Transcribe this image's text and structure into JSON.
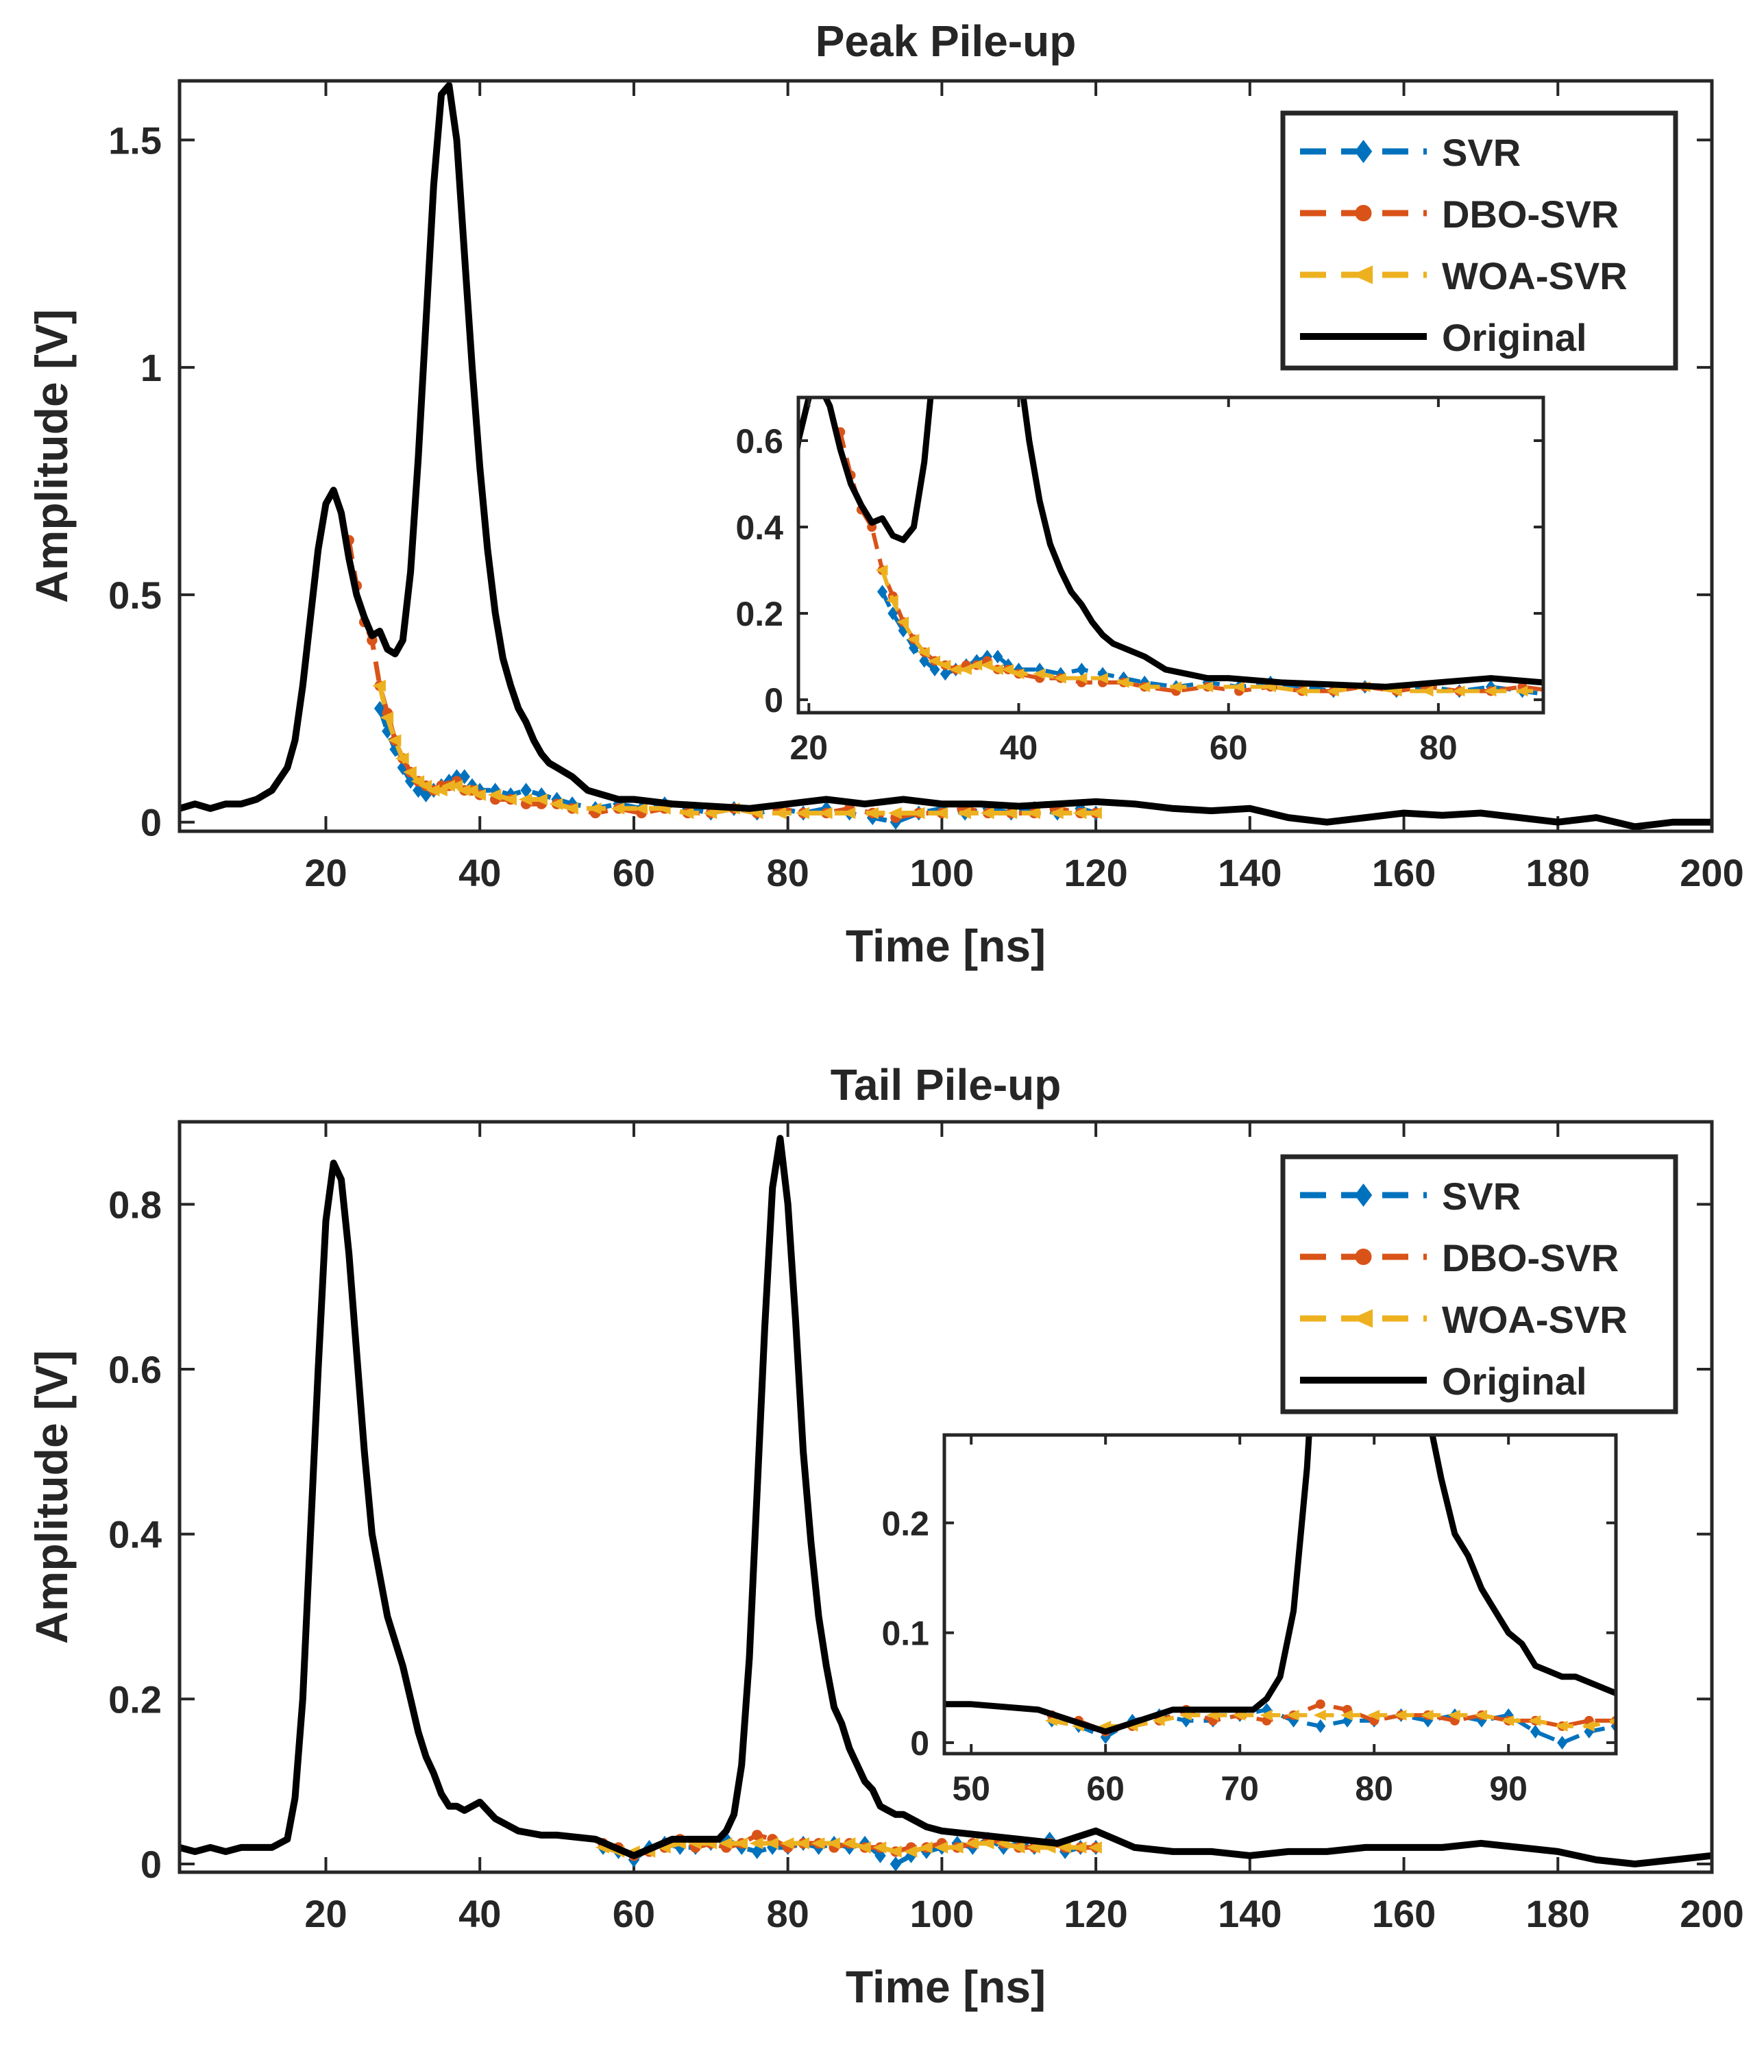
{
  "chart_data": [
    {
      "type": "line",
      "title": "Peak Pile-up",
      "xlabel": "Time [ns]",
      "ylabel": "Amplitude [V]",
      "xlim": [
        1,
        200
      ],
      "ylim": [
        -0.02,
        1.63
      ],
      "xticks": [
        20,
        40,
        60,
        80,
        100,
        120,
        140,
        160,
        180,
        200
      ],
      "xtick_labels": [
        "20",
        "40",
        "60",
        "80",
        "100",
        "120",
        "140",
        "160",
        "180",
        "200"
      ],
      "yticks": [
        0,
        0.5,
        1,
        1.5
      ],
      "ytick_labels": [
        "0",
        "0.5",
        "1",
        "1.5"
      ],
      "legend_position": "top-right",
      "series": [
        {
          "name": "SVR",
          "color": "#0072BD",
          "marker": "diamond",
          "x": [
            27,
            28,
            29,
            30,
            31,
            32,
            33,
            34,
            35,
            36,
            37,
            38,
            39,
            40,
            42,
            44,
            46,
            48,
            50,
            52,
            55,
            58,
            61,
            64,
            67,
            70,
            73,
            76,
            79,
            82,
            85,
            88,
            91,
            94,
            97,
            100,
            103,
            106,
            109,
            112,
            115,
            118,
            120
          ],
          "y": [
            0.25,
            0.2,
            0.16,
            0.12,
            0.09,
            0.07,
            0.06,
            0.07,
            0.08,
            0.09,
            0.1,
            0.1,
            0.08,
            0.07,
            0.07,
            0.06,
            0.07,
            0.06,
            0.05,
            0.04,
            0.03,
            0.04,
            0.03,
            0.04,
            0.03,
            0.02,
            0.03,
            0.02,
            0.03,
            0.02,
            0.03,
            0.02,
            0.01,
            0.0,
            0.02,
            0.03,
            0.02,
            0.03,
            0.02,
            0.03,
            0.02,
            0.03,
            0.02
          ]
        },
        {
          "name": "DBO-SVR",
          "color": "#D95319",
          "marker": "circle",
          "x": [
            23,
            24,
            25,
            26,
            27,
            28,
            29,
            30,
            31,
            32,
            33,
            34,
            35,
            36,
            37,
            38,
            39,
            40,
            42,
            44,
            46,
            48,
            50,
            52,
            55,
            58,
            61,
            64,
            67,
            70,
            73,
            76,
            79,
            82,
            85,
            88,
            91,
            94,
            97,
            100,
            103,
            106,
            109,
            112,
            115,
            118,
            120
          ],
          "y": [
            0.62,
            0.52,
            0.44,
            0.4,
            0.3,
            0.24,
            0.18,
            0.14,
            0.11,
            0.09,
            0.08,
            0.07,
            0.08,
            0.08,
            0.09,
            0.07,
            0.07,
            0.06,
            0.05,
            0.05,
            0.04,
            0.04,
            0.04,
            0.03,
            0.02,
            0.03,
            0.02,
            0.03,
            0.02,
            0.02,
            0.03,
            0.02,
            0.03,
            0.02,
            0.02,
            0.03,
            0.02,
            0.01,
            0.02,
            0.02,
            0.03,
            0.02,
            0.02,
            0.02,
            0.03,
            0.02,
            0.02
          ]
        },
        {
          "name": "WOA-SVR",
          "color": "#EDB120",
          "marker": "left-triangle",
          "x": [
            27,
            28,
            29,
            30,
            31,
            32,
            33,
            34,
            35,
            36,
            37,
            38,
            39,
            40,
            42,
            44,
            46,
            48,
            50,
            52,
            55,
            58,
            61,
            64,
            67,
            70,
            73,
            76,
            79,
            82,
            85,
            88,
            91,
            94,
            97,
            100,
            103,
            106,
            109,
            112,
            115,
            118,
            120
          ],
          "y": [
            0.3,
            0.23,
            0.18,
            0.14,
            0.11,
            0.09,
            0.08,
            0.07,
            0.07,
            0.08,
            0.08,
            0.07,
            0.07,
            0.06,
            0.06,
            0.05,
            0.05,
            0.05,
            0.04,
            0.03,
            0.03,
            0.03,
            0.03,
            0.03,
            0.02,
            0.02,
            0.03,
            0.02,
            0.02,
            0.02,
            0.02,
            0.02,
            0.02,
            0.02,
            0.02,
            0.02,
            0.02,
            0.02,
            0.02,
            0.02,
            0.02,
            0.02,
            0.02
          ]
        },
        {
          "name": "Original",
          "color": "#000000",
          "marker": "none",
          "x": [
            1,
            3,
            5,
            7,
            9,
            11,
            13,
            15,
            16,
            17,
            18,
            19,
            20,
            21,
            22,
            23,
            24,
            25,
            26,
            27,
            28,
            29,
            30,
            31,
            32,
            33,
            34,
            35,
            36,
            37,
            38,
            39,
            40,
            41,
            42,
            43,
            44,
            45,
            46,
            47,
            48,
            49,
            50,
            52,
            54,
            56,
            58,
            60,
            65,
            70,
            75,
            80,
            85,
            90,
            95,
            100,
            105,
            110,
            115,
            120,
            125,
            130,
            135,
            140,
            145,
            150,
            155,
            160,
            165,
            170,
            175,
            180,
            185,
            190,
            195,
            200
          ],
          "y": [
            0.03,
            0.04,
            0.03,
            0.04,
            0.04,
            0.05,
            0.07,
            0.12,
            0.18,
            0.3,
            0.45,
            0.6,
            0.7,
            0.73,
            0.68,
            0.58,
            0.5,
            0.45,
            0.41,
            0.42,
            0.38,
            0.37,
            0.4,
            0.55,
            0.8,
            1.1,
            1.4,
            1.6,
            1.62,
            1.5,
            1.25,
            1.0,
            0.78,
            0.6,
            0.46,
            0.36,
            0.3,
            0.25,
            0.22,
            0.18,
            0.15,
            0.13,
            0.12,
            0.1,
            0.07,
            0.06,
            0.05,
            0.05,
            0.04,
            0.035,
            0.03,
            0.04,
            0.05,
            0.04,
            0.05,
            0.04,
            0.04,
            0.035,
            0.04,
            0.045,
            0.04,
            0.03,
            0.025,
            0.03,
            0.01,
            0.0,
            0.01,
            0.02,
            0.015,
            0.02,
            0.01,
            0.0,
            0.01,
            -0.01,
            0.0,
            0.0
          ]
        }
      ],
      "inset": {
        "xlim": [
          19,
          90
        ],
        "ylim": [
          -0.03,
          0.7
        ],
        "xticks": [
          20,
          40,
          60,
          80
        ],
        "xtick_labels": [
          "20",
          "40",
          "60",
          "80"
        ],
        "yticks": [
          0,
          0.2,
          0.4,
          0.6
        ],
        "ytick_labels": [
          "0",
          "0.2",
          "0.4",
          "0.6"
        ]
      }
    },
    {
      "type": "line",
      "title": "Tail Pile-up",
      "xlabel": "Time [ns]",
      "ylabel": "Amplitude [V]",
      "xlim": [
        1,
        200
      ],
      "ylim": [
        -0.01,
        0.9
      ],
      "xticks": [
        20,
        40,
        60,
        80,
        100,
        120,
        140,
        160,
        180,
        200
      ],
      "xtick_labels": [
        "20",
        "40",
        "60",
        "80",
        "100",
        "120",
        "140",
        "160",
        "180",
        "200"
      ],
      "yticks": [
        0,
        0.2,
        0.4,
        0.6,
        0.8
      ],
      "ytick_labels": [
        "0",
        "0.2",
        "0.4",
        "0.6",
        "0.8"
      ],
      "legend_position": "top-right",
      "series": [
        {
          "name": "SVR",
          "color": "#0072BD",
          "marker": "diamond",
          "x": [
            56,
            58,
            60,
            62,
            64,
            66,
            68,
            70,
            72,
            74,
            76,
            78,
            80,
            82,
            84,
            86,
            88,
            90,
            92,
            94,
            96,
            98,
            100,
            102,
            104,
            106,
            108,
            110,
            112,
            114,
            116,
            118,
            120
          ],
          "y": [
            0.02,
            0.015,
            0.005,
            0.02,
            0.025,
            0.02,
            0.02,
            0.025,
            0.03,
            0.02,
            0.015,
            0.02,
            0.02,
            0.025,
            0.02,
            0.025,
            0.02,
            0.025,
            0.01,
            0.0,
            0.01,
            0.015,
            0.02,
            0.025,
            0.02,
            0.03,
            0.02,
            0.025,
            0.02,
            0.03,
            0.015,
            0.02,
            0.02
          ]
        },
        {
          "name": "DBO-SVR",
          "color": "#D95319",
          "marker": "circle",
          "x": [
            56,
            58,
            60,
            62,
            64,
            66,
            68,
            70,
            72,
            74,
            76,
            78,
            80,
            82,
            84,
            86,
            88,
            90,
            92,
            94,
            96,
            98,
            100,
            102,
            104,
            106,
            108,
            110,
            112,
            114,
            116,
            118,
            120
          ],
          "y": [
            0.025,
            0.02,
            0.01,
            0.015,
            0.02,
            0.03,
            0.02,
            0.025,
            0.02,
            0.025,
            0.035,
            0.03,
            0.02,
            0.025,
            0.025,
            0.02,
            0.025,
            0.02,
            0.02,
            0.015,
            0.02,
            0.02,
            0.025,
            0.02,
            0.025,
            0.03,
            0.025,
            0.02,
            0.02,
            0.025,
            0.02,
            0.02,
            0.02
          ]
        },
        {
          "name": "WOA-SVR",
          "color": "#EDB120",
          "marker": "left-triangle",
          "x": [
            56,
            58,
            60,
            62,
            64,
            66,
            68,
            70,
            72,
            74,
            76,
            78,
            80,
            82,
            84,
            86,
            88,
            90,
            92,
            94,
            96,
            98,
            100,
            102,
            104,
            106,
            108,
            110,
            112,
            114,
            116,
            118,
            120
          ],
          "y": [
            0.02,
            0.015,
            0.015,
            0.015,
            0.02,
            0.025,
            0.025,
            0.025,
            0.025,
            0.025,
            0.025,
            0.025,
            0.025,
            0.025,
            0.025,
            0.025,
            0.025,
            0.02,
            0.02,
            0.015,
            0.015,
            0.02,
            0.02,
            0.02,
            0.025,
            0.025,
            0.025,
            0.02,
            0.02,
            0.02,
            0.02,
            0.02,
            0.02
          ]
        },
        {
          "name": "Original",
          "color": "#000000",
          "marker": "none",
          "x": [
            1,
            3,
            5,
            7,
            9,
            11,
            13,
            15,
            16,
            17,
            18,
            19,
            20,
            21,
            22,
            23,
            24,
            25,
            26,
            27,
            28,
            29,
            30,
            31,
            32,
            33,
            34,
            35,
            36,
            37,
            38,
            40,
            42,
            45,
            48,
            50,
            55,
            60,
            65,
            70,
            71,
            72,
            73,
            74,
            75,
            76,
            77,
            78,
            79,
            80,
            81,
            82,
            83,
            84,
            85,
            86,
            87,
            88,
            89,
            90,
            91,
            92,
            93,
            94,
            95,
            96,
            97,
            98,
            100,
            105,
            110,
            115,
            120,
            125,
            130,
            135,
            140,
            145,
            150,
            155,
            160,
            165,
            170,
            175,
            180,
            185,
            190,
            195,
            200
          ],
          "y": [
            0.02,
            0.015,
            0.02,
            0.015,
            0.02,
            0.02,
            0.02,
            0.03,
            0.08,
            0.2,
            0.4,
            0.6,
            0.78,
            0.85,
            0.83,
            0.74,
            0.62,
            0.5,
            0.4,
            0.35,
            0.3,
            0.27,
            0.24,
            0.2,
            0.16,
            0.13,
            0.11,
            0.085,
            0.07,
            0.07,
            0.065,
            0.075,
            0.055,
            0.04,
            0.035,
            0.035,
            0.03,
            0.01,
            0.03,
            0.03,
            0.03,
            0.04,
            0.06,
            0.12,
            0.25,
            0.45,
            0.65,
            0.82,
            0.88,
            0.8,
            0.66,
            0.5,
            0.39,
            0.3,
            0.24,
            0.19,
            0.17,
            0.14,
            0.12,
            0.1,
            0.09,
            0.07,
            0.065,
            0.06,
            0.06,
            0.055,
            0.05,
            0.045,
            0.04,
            0.035,
            0.03,
            0.025,
            0.04,
            0.02,
            0.015,
            0.015,
            0.01,
            0.015,
            0.015,
            0.02,
            0.02,
            0.02,
            0.025,
            0.02,
            0.015,
            0.005,
            0.0,
            0.005,
            0.01
          ]
        }
      ],
      "inset": {
        "xlim": [
          48,
          98
        ],
        "ylim": [
          -0.01,
          0.28
        ],
        "xticks": [
          50,
          60,
          70,
          80,
          90
        ],
        "xtick_labels": [
          "50",
          "60",
          "70",
          "80",
          "90"
        ],
        "yticks": [
          0,
          0.1,
          0.2
        ],
        "ytick_labels": [
          "0",
          "0.1",
          "0.2"
        ]
      }
    }
  ]
}
